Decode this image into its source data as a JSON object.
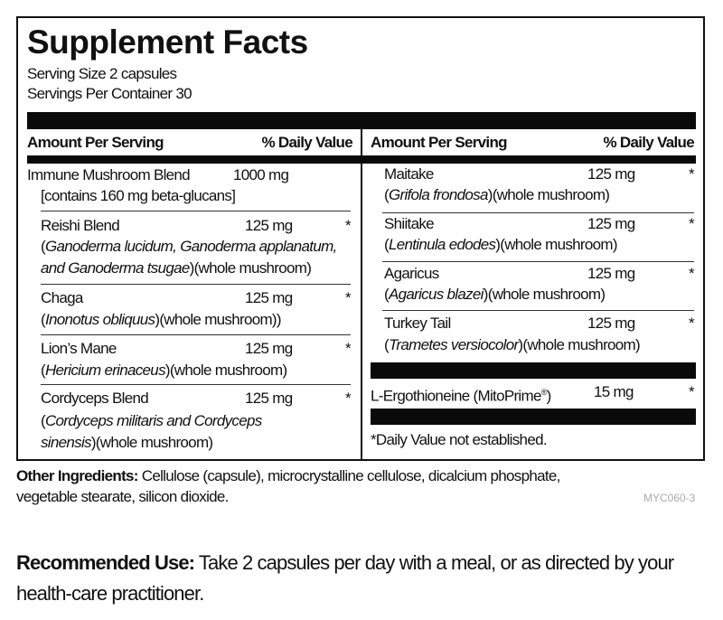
{
  "title": "Supplement Facts",
  "serving_size": "Serving Size 2 capsules",
  "servings_per_container": "Servings Per Container 30",
  "header": {
    "amount": "Amount Per Serving",
    "dv": "% Daily Value"
  },
  "left": [
    {
      "name": "Immune Mushroom Blend",
      "amount": "1000 mg",
      "note": "[contains 160 mg beta-glucans]"
    },
    {
      "name": "Reishi Blend",
      "amount": "125 mg",
      "dv": "*",
      "latin1": "Ganoderma lucidum, Ganoderma applanatum,",
      "latin2": "and Ganoderma tsugae",
      "suffix": "(whole mushroom)"
    },
    {
      "name": "Chaga",
      "amount": "125 mg",
      "dv": "*",
      "latin": "Inonotus obliquus",
      "suffix": "(whole mushroom))"
    },
    {
      "name": "Lion’s Mane",
      "amount": "125 mg",
      "dv": "*",
      "latin": "Hericium erinaceus",
      "suffix": "(whole mushroom)"
    },
    {
      "name": "Cordyceps Blend",
      "amount": "125 mg",
      "dv": "*",
      "latin1": "Cordyceps militaris and Cordyceps",
      "latin2": "sinensis",
      "suffix": "(whole mushroom)"
    }
  ],
  "right": [
    {
      "name": "Maitake",
      "amount": "125 mg",
      "dv": "*",
      "latin": "Grifola frondosa",
      "suffix": "(whole mushroom)"
    },
    {
      "name": "Shiitake",
      "amount": "125 mg",
      "dv": "*",
      "latin": "Lentinula edodes",
      "suffix": "(whole mushroom)"
    },
    {
      "name": "Agaricus",
      "amount": "125 mg",
      "dv": "*",
      "latin": "Agaricus blazei",
      "suffix": "(whole mushroom)"
    },
    {
      "name": "Turkey Tail",
      "amount": "125 mg",
      "dv": "*",
      "latin": "Trametes versiocolor",
      "suffix": "(whole mushroom)"
    }
  ],
  "ergo": {
    "name": "L-Ergothioneine (MitoPrime",
    "reg": "®",
    "close": ")",
    "amount": "15 mg",
    "dv": "*"
  },
  "footnote": "*Daily Value not established.",
  "other": {
    "label": "Other Ingredients:",
    "line1": " Cellulose (capsule), microcrystalline cellulose, dicalcium phosphate,",
    "line2": "vegetable stearate, silicon dioxide."
  },
  "code": "MYC060-3",
  "recommended": {
    "label": "Recommended Use:",
    "line1": " Take 2 capsules per day with a meal, or as directed by your",
    "line2": "health-care practitioner."
  }
}
